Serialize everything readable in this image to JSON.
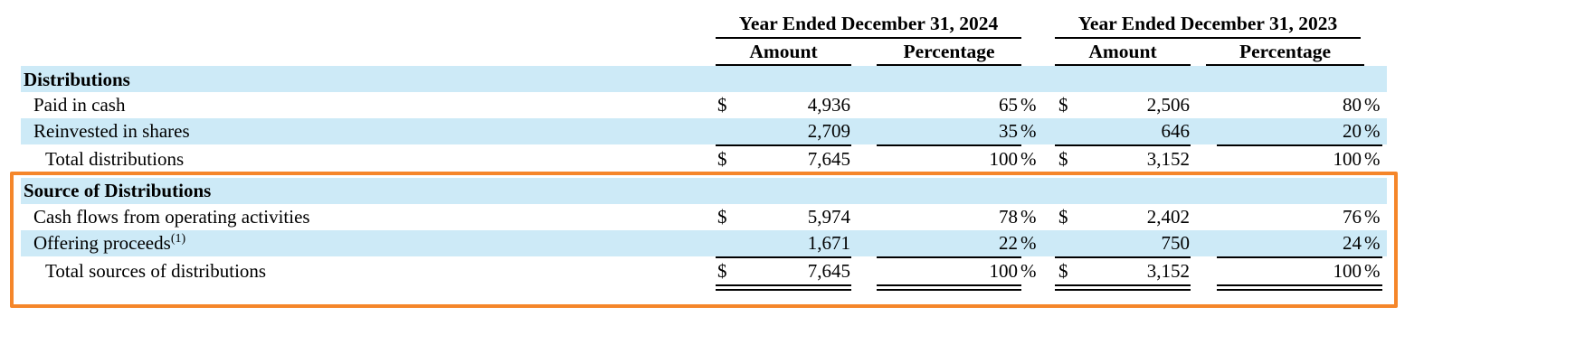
{
  "header": {
    "period_2024": "Year Ended December 31, 2024",
    "period_2023": "Year Ended December 31, 2023",
    "amount_label": "Amount",
    "percentage_label": "Percentage"
  },
  "distributions": {
    "title": "Distributions",
    "rows": [
      {
        "label": "Paid in cash",
        "cur_2024": "$",
        "amount_2024": "4,936",
        "pct_2024": "65",
        "cur_2023": "$",
        "amount_2023": "2,506",
        "pct_2023": "80"
      },
      {
        "label": "Reinvested in shares",
        "cur_2024": "",
        "amount_2024": "2,709",
        "pct_2024": "35",
        "cur_2023": "",
        "amount_2023": "646",
        "pct_2023": "20"
      },
      {
        "label": "Total distributions",
        "cur_2024": "$",
        "amount_2024": "7,645",
        "pct_2024": "100",
        "cur_2023": "$",
        "amount_2023": "3,152",
        "pct_2023": "100"
      }
    ]
  },
  "sources": {
    "title": "Source of Distributions",
    "rows": [
      {
        "label": "Cash flows from operating activities",
        "cur_2024": "$",
        "amount_2024": "5,974",
        "pct_2024": "78",
        "cur_2023": "$",
        "amount_2023": "2,402",
        "pct_2023": "76"
      },
      {
        "label": "Offering proceeds",
        "footnote": "(1)",
        "cur_2024": "",
        "amount_2024": "1,671",
        "pct_2024": "22",
        "cur_2023": "",
        "amount_2023": "750",
        "pct_2023": "24"
      },
      {
        "label": "Total sources of distributions",
        "cur_2024": "$",
        "amount_2024": "7,645",
        "pct_2024": "100",
        "cur_2023": "$",
        "amount_2023": "3,152",
        "pct_2023": "100"
      }
    ]
  },
  "percent_sign": "%",
  "colors": {
    "band": "#cdeaf7",
    "highlight": "#f5862a"
  }
}
